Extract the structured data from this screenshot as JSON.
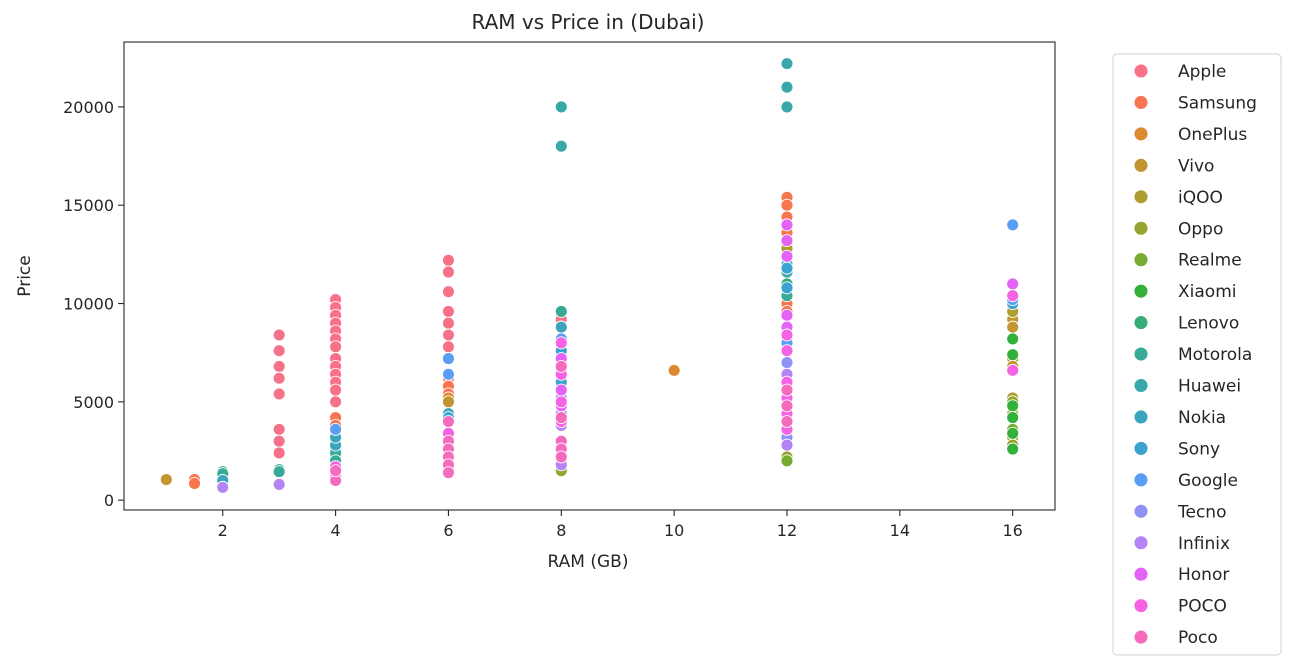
{
  "chart_data": {
    "type": "scatter",
    "title": "RAM vs Price in (Dubai)",
    "xlabel": "RAM (GB)",
    "ylabel": "Price",
    "xlim": [
      0.25,
      16.75
    ],
    "ylim": [
      -500,
      23300
    ],
    "xticks": [
      2,
      4,
      6,
      8,
      10,
      12,
      14,
      16
    ],
    "yticks": [
      0,
      5000,
      10000,
      15000,
      20000
    ],
    "grid": false,
    "legend_position": "outside-right",
    "series": [
      {
        "name": "Apple",
        "color": "#f77189",
        "points": [
          [
            3,
            8400
          ],
          [
            3,
            7600
          ],
          [
            3,
            6800
          ],
          [
            3,
            6200
          ],
          [
            3,
            5400
          ],
          [
            3,
            3600
          ],
          [
            3,
            3000
          ],
          [
            3,
            2400
          ],
          [
            4,
            10200
          ],
          [
            4,
            9800
          ],
          [
            4,
            9400
          ],
          [
            4,
            9000
          ],
          [
            4,
            8600
          ],
          [
            4,
            8200
          ],
          [
            4,
            7800
          ],
          [
            4,
            7200
          ],
          [
            4,
            6800
          ],
          [
            4,
            6400
          ],
          [
            4,
            6000
          ],
          [
            4,
            5600
          ],
          [
            4,
            5000
          ],
          [
            6,
            12200
          ],
          [
            6,
            11600
          ],
          [
            6,
            10600
          ],
          [
            6,
            9600
          ],
          [
            6,
            9000
          ],
          [
            6,
            8400
          ],
          [
            6,
            7800
          ],
          [
            6,
            7200
          ],
          [
            8,
            9200
          ],
          [
            8,
            8800
          ]
        ]
      },
      {
        "name": "Samsung",
        "color": "#f7754f",
        "points": [
          [
            1.5,
            1050
          ],
          [
            1.5,
            850
          ],
          [
            4,
            4200
          ],
          [
            4,
            3800
          ],
          [
            6,
            6200
          ],
          [
            6,
            5800
          ],
          [
            6,
            5400
          ],
          [
            12,
            15400
          ],
          [
            12,
            15000
          ],
          [
            12,
            14400
          ],
          [
            12,
            13600
          ],
          [
            12,
            10000
          ],
          [
            12,
            9600
          ]
        ]
      },
      {
        "name": "OnePlus",
        "color": "#dc8932",
        "points": [
          [
            10,
            6600
          ],
          [
            12,
            13000
          ],
          [
            12,
            12400
          ],
          [
            6,
            5200
          ]
        ]
      },
      {
        "name": "Vivo",
        "color": "#c39532",
        "points": [
          [
            1,
            1050
          ],
          [
            6,
            5000
          ],
          [
            16,
            9800
          ],
          [
            16,
            9200
          ],
          [
            16,
            8800
          ],
          [
            16,
            7200
          ],
          [
            16,
            6800
          ]
        ]
      },
      {
        "name": "iQOO",
        "color": "#ae9d31",
        "points": [
          [
            12,
            12800
          ],
          [
            16,
            9600
          ],
          [
            16,
            5200
          ],
          [
            16,
            4400
          ]
        ]
      },
      {
        "name": "Oppo",
        "color": "#97a431",
        "points": [
          [
            16,
            5000
          ],
          [
            16,
            3200
          ],
          [
            16,
            2800
          ],
          [
            12,
            2200
          ],
          [
            8,
            1500
          ]
        ]
      },
      {
        "name": "Realme",
        "color": "#77ab31",
        "points": [
          [
            12,
            2000
          ],
          [
            16,
            3600
          ],
          [
            16,
            2600
          ],
          [
            4,
            1800
          ]
        ]
      },
      {
        "name": "Xiaomi",
        "color": "#33b039",
        "points": [
          [
            16,
            8200
          ],
          [
            16,
            7400
          ],
          [
            16,
            4800
          ],
          [
            16,
            4200
          ],
          [
            16,
            3400
          ],
          [
            16,
            2600
          ]
        ]
      },
      {
        "name": "Lenovo",
        "color": "#35ac7a",
        "points": [
          [
            2,
            1450
          ],
          [
            3,
            1550
          ],
          [
            4,
            2600
          ],
          [
            4,
            2200
          ],
          [
            4,
            1900
          ],
          [
            12,
            11000
          ]
        ]
      },
      {
        "name": "Motorola",
        "color": "#37aa98",
        "points": [
          [
            2,
            1350
          ],
          [
            3,
            1450
          ],
          [
            4,
            2400
          ],
          [
            4,
            2000
          ],
          [
            12,
            10400
          ],
          [
            8,
            9600
          ]
        ]
      },
      {
        "name": "Huawei",
        "color": "#38a8ab",
        "points": [
          [
            8,
            20000
          ],
          [
            8,
            18000
          ],
          [
            12,
            22200
          ],
          [
            12,
            21000
          ],
          [
            12,
            20000
          ],
          [
            12,
            11600
          ]
        ]
      },
      {
        "name": "Nokia",
        "color": "#3aa5bd",
        "points": [
          [
            2,
            1000
          ],
          [
            4,
            2800
          ],
          [
            4,
            3200
          ],
          [
            6,
            4400
          ],
          [
            12,
            12000
          ],
          [
            8,
            8800
          ]
        ]
      },
      {
        "name": "Sony",
        "color": "#3ba3d0",
        "points": [
          [
            6,
            4200
          ],
          [
            8,
            7600
          ],
          [
            8,
            6000
          ],
          [
            12,
            11800
          ],
          [
            12,
            10800
          ],
          [
            16,
            10000
          ]
        ]
      },
      {
        "name": "Google",
        "color": "#5a9ef4",
        "points": [
          [
            4,
            3600
          ],
          [
            6,
            7200
          ],
          [
            6,
            6400
          ],
          [
            8,
            8200
          ],
          [
            12,
            8000
          ],
          [
            16,
            14000
          ],
          [
            16,
            10200
          ]
        ]
      },
      {
        "name": "Tecno",
        "color": "#8e92f5",
        "points": [
          [
            3,
            850
          ],
          [
            4,
            1400
          ],
          [
            8,
            5200
          ],
          [
            8,
            4400
          ],
          [
            12,
            7000
          ],
          [
            12,
            3200
          ]
        ]
      },
      {
        "name": "Infinix",
        "color": "#b483f4",
        "points": [
          [
            2,
            650
          ],
          [
            3,
            800
          ],
          [
            4,
            1200
          ],
          [
            8,
            3800
          ],
          [
            8,
            1800
          ],
          [
            12,
            6400
          ],
          [
            12,
            2800
          ]
        ]
      },
      {
        "name": "Honor",
        "color": "#e363f4",
        "points": [
          [
            8,
            7200
          ],
          [
            8,
            5600
          ],
          [
            8,
            4800
          ],
          [
            12,
            14000
          ],
          [
            12,
            13200
          ],
          [
            12,
            12400
          ],
          [
            12,
            9400
          ],
          [
            12,
            8800
          ],
          [
            16,
            11000
          ]
        ]
      },
      {
        "name": "POCO",
        "color": "#f562e2",
        "points": [
          [
            4,
            1700
          ],
          [
            6,
            3400
          ],
          [
            6,
            1600
          ],
          [
            8,
            8000
          ],
          [
            8,
            6400
          ],
          [
            8,
            5000
          ],
          [
            8,
            4000
          ],
          [
            12,
            8400
          ],
          [
            12,
            7600
          ],
          [
            12,
            6000
          ],
          [
            12,
            5200
          ],
          [
            12,
            4400
          ],
          [
            12,
            3600
          ],
          [
            16,
            10400
          ],
          [
            16,
            6600
          ]
        ]
      },
      {
        "name": "Poco",
        "color": "#f56bbd",
        "points": [
          [
            4,
            1000
          ],
          [
            4,
            1500
          ],
          [
            6,
            4000
          ],
          [
            6,
            3000
          ],
          [
            6,
            2600
          ],
          [
            6,
            2200
          ],
          [
            6,
            1800
          ],
          [
            6,
            1400
          ],
          [
            8,
            6800
          ],
          [
            8,
            4200
          ],
          [
            8,
            3000
          ],
          [
            8,
            2600
          ],
          [
            8,
            2200
          ],
          [
            12,
            5600
          ],
          [
            12,
            4800
          ],
          [
            12,
            4000
          ]
        ]
      }
    ]
  }
}
